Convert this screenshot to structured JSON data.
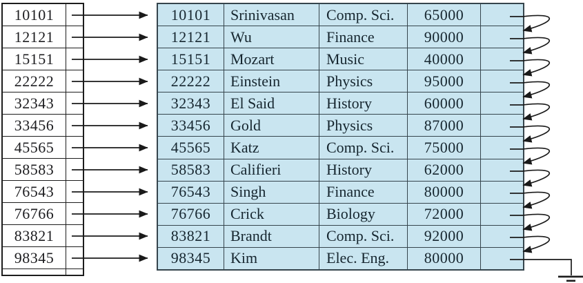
{
  "figure": {
    "name": "dense-index-on-instructor-file",
    "index_block": {
      "keys": [
        "10101",
        "12121",
        "15151",
        "22222",
        "32343",
        "33456",
        "45565",
        "58583",
        "76543",
        "76766",
        "83821",
        "98345"
      ]
    },
    "file_block": {
      "rows": [
        {
          "id": "10101",
          "name": "Srinivasan",
          "dept": "Comp. Sci.",
          "salary": "65000"
        },
        {
          "id": "12121",
          "name": "Wu",
          "dept": "Finance",
          "salary": "90000"
        },
        {
          "id": "15151",
          "name": "Mozart",
          "dept": "Music",
          "salary": "40000"
        },
        {
          "id": "22222",
          "name": "Einstein",
          "dept": "Physics",
          "salary": "95000"
        },
        {
          "id": "32343",
          "name": "El Said",
          "dept": "History",
          "salary": "60000"
        },
        {
          "id": "33456",
          "name": "Gold",
          "dept": "Physics",
          "salary": "87000"
        },
        {
          "id": "45565",
          "name": "Katz",
          "dept": "Comp. Sci.",
          "salary": "75000"
        },
        {
          "id": "58583",
          "name": "Califieri",
          "dept": "History",
          "salary": "62000"
        },
        {
          "id": "76543",
          "name": "Singh",
          "dept": "Finance",
          "salary": "80000"
        },
        {
          "id": "76766",
          "name": "Crick",
          "dept": "Biology",
          "salary": "72000"
        },
        {
          "id": "83821",
          "name": "Brandt",
          "dept": "Comp. Sci.",
          "salary": "92000"
        },
        {
          "id": "98345",
          "name": "Kim",
          "dept": "Elec. Eng.",
          "salary": "80000"
        }
      ]
    },
    "links": {
      "index_pointers": [
        0,
        1,
        2,
        3,
        4,
        5,
        6,
        7,
        8,
        9,
        10,
        11
      ],
      "record_chain": [
        {
          "from": 0,
          "to": 1
        },
        {
          "from": 1,
          "to": 2
        },
        {
          "from": 2,
          "to": 3
        },
        {
          "from": 3,
          "to": 4
        },
        {
          "from": 4,
          "to": 5
        },
        {
          "from": 5,
          "to": 6
        },
        {
          "from": 6,
          "to": 7
        },
        {
          "from": 7,
          "to": 8
        },
        {
          "from": 8,
          "to": 9
        },
        {
          "from": 9,
          "to": 10
        },
        {
          "from": 10,
          "to": 11
        }
      ],
      "terminator_row": 11
    },
    "colors": {
      "row_fill": "#c9e5f0",
      "file_border": "#35444c",
      "index_border": "#1c1c1c",
      "text": "#16262f",
      "index_text": "#1d1d20",
      "arrow": "#1a1a1a"
    }
  }
}
